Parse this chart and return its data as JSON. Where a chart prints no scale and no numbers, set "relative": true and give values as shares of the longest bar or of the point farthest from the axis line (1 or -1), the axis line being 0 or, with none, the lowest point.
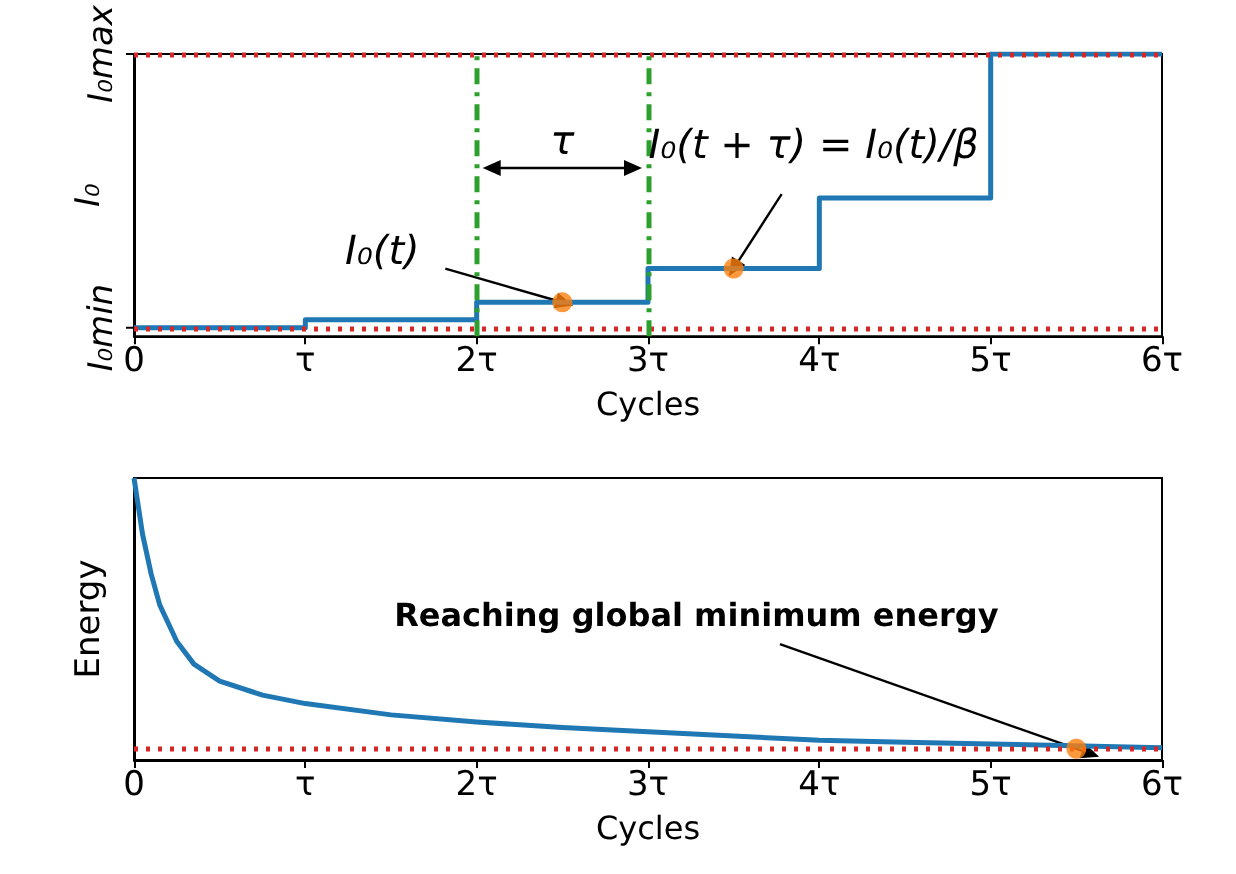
{
  "chart_data": [
    {
      "type": "step",
      "xlabel": "Cycles",
      "ylabel": "I₀",
      "relative": true,
      "x": [
        0,
        1,
        2,
        3,
        4,
        5,
        6
      ],
      "series": [
        {
          "color": "#1f77b4",
          "values": [
            0.03,
            0.058,
            0.12,
            0.24,
            0.49,
            1,
            1
          ]
        },
        {
          "type": "scatter",
          "marker": "circle",
          "color": "#ff7f0e",
          "x": [
            2.5,
            3.5
          ],
          "values": [
            0.12,
            0.24
          ]
        }
      ],
      "xlim": [
        0,
        6
      ],
      "xticks": [
        0,
        {
          "value": 1,
          "label": "τ"
        },
        {
          "value": 2,
          "label": "2τ"
        },
        {
          "value": 3,
          "label": "3τ"
        },
        {
          "value": 4,
          "label": "4τ"
        },
        {
          "value": 5,
          "label": "5τ"
        },
        {
          "value": 6,
          "label": "6τ"
        }
      ],
      "ref_lines": [
        {
          "axis": "y",
          "value": 0.03,
          "label": "I₀min",
          "color": "#d62728",
          "line_style": "dotted"
        },
        {
          "axis": "y",
          "value": 1,
          "label": "I₀max",
          "color": "#d62728",
          "line_style": "dotted"
        },
        {
          "axis": "x",
          "value": 2,
          "color": "#2ca02c",
          "line_style": "dashed"
        },
        {
          "axis": "x",
          "value": 3,
          "color": "#2ca02c",
          "line_style": "dashed"
        }
      ],
      "annotations": [
        {
          "text": "I₀(t)",
          "x": 2.5,
          "y": 0.12
        },
        "τ",
        {
          "text": "I₀(t + τ) = I₀(t)/β",
          "x": 3.5,
          "y": 0.24
        }
      ],
      "marker": "none",
      "grid": false
    },
    {
      "type": "line",
      "xlabel": "Cycles",
      "ylabel": "Energy",
      "relative": true,
      "series": [
        {
          "color": "#1f77b4",
          "x": [
            0,
            0.05,
            0.1,
            0.15,
            0.25,
            0.35,
            0.5,
            0.75,
            1,
            1.5,
            2,
            2.5,
            3,
            3.5,
            4,
            4.5,
            5,
            6
          ],
          "values": [
            1,
            0.8,
            0.66,
            0.55,
            0.42,
            0.34,
            0.28,
            0.23,
            0.2,
            0.16,
            0.135,
            0.115,
            0.1,
            0.085,
            0.07,
            0.063,
            0.057,
            0.043
          ]
        },
        {
          "type": "scatter",
          "marker": "circle",
          "color": "#ff7f0e",
          "x": [
            5.5
          ],
          "values": [
            0.04
          ]
        }
      ],
      "xlim": [
        0,
        6
      ],
      "xticks": [
        0,
        {
          "value": 1,
          "label": "τ"
        },
        {
          "value": 2,
          "label": "2τ"
        },
        {
          "value": 3,
          "label": "3τ"
        },
        {
          "value": 4,
          "label": "4τ"
        },
        {
          "value": 5,
          "label": "5τ"
        },
        {
          "value": 6,
          "label": "6τ"
        }
      ],
      "ref_lines": [
        {
          "axis": "y",
          "value": 0.04,
          "color": "#d62728",
          "line_style": "dotted"
        }
      ],
      "annotations": [
        {
          "text": "Reaching global minimum energy",
          "x": 5.5,
          "y": 0.04
        }
      ],
      "marker": "none",
      "grid": false
    }
  ]
}
